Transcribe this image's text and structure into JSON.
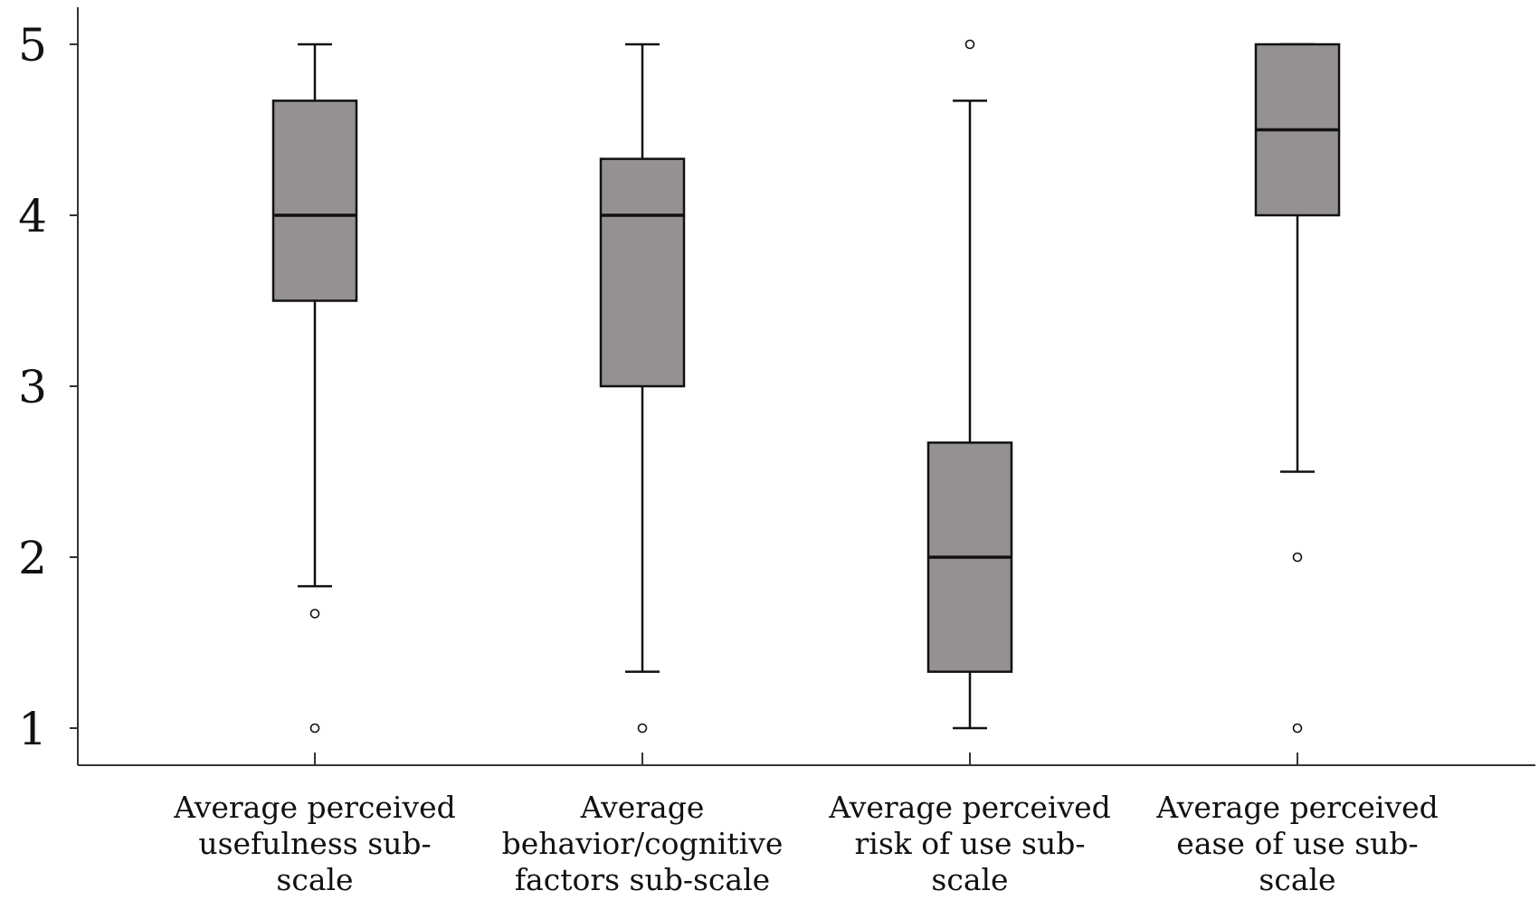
{
  "chart_data": {
    "type": "boxplot",
    "title": "",
    "xlabel": "",
    "ylabel": "",
    "ylim": [
      0.78,
      5.22
    ],
    "yticks": [
      1,
      2,
      3,
      4,
      5
    ],
    "ytick_labels": [
      "1",
      "2",
      "3",
      "4",
      "5"
    ],
    "grid": false,
    "box_color": "#959190",
    "categories": [
      {
        "label_lines": [
          "Average perceived",
          "usefulness sub-",
          "scale"
        ],
        "min": 1.83,
        "q1": 3.5,
        "median": 4.0,
        "q3": 4.67,
        "max": 5.0,
        "outliers": [
          1.67,
          1.0
        ]
      },
      {
        "label_lines": [
          "Average",
          "behavior/cognitive",
          "factors sub-scale"
        ],
        "min": 1.33,
        "q1": 3.0,
        "median": 4.0,
        "q3": 4.33,
        "max": 5.0,
        "outliers": [
          1.0
        ]
      },
      {
        "label_lines": [
          "Average perceived",
          "risk of use sub-",
          "scale"
        ],
        "min": 1.0,
        "q1": 1.33,
        "median": 2.0,
        "q3": 2.67,
        "max": 4.67,
        "outliers": [
          5.0
        ]
      },
      {
        "label_lines": [
          "Average perceived",
          "ease of use sub-",
          "scale"
        ],
        "min": 2.5,
        "q1": 4.0,
        "median": 4.5,
        "q3": 5.0,
        "max": 5.0,
        "outliers": [
          2.0,
          1.0
        ]
      }
    ]
  }
}
